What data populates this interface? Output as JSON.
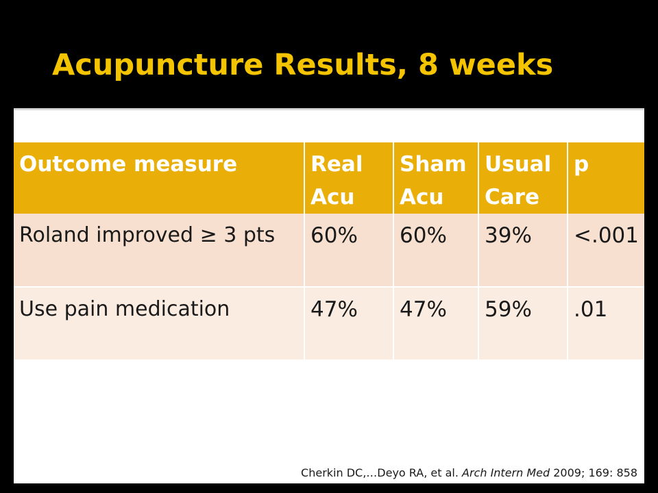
{
  "slide": {
    "title": "Acupuncture Results, 8 weeks",
    "title_color": "#f5c400",
    "background_color": "#000000"
  },
  "table": {
    "header_color": "#e9ae07",
    "row_colors": [
      "#f7e0cf",
      "#fbece2"
    ],
    "headers": [
      "Outcome measure",
      "Real Acu",
      "Sham Acu",
      "Usual Care",
      "p"
    ],
    "rows": [
      [
        "Roland improved ≥ 3 pts",
        "60%",
        "60%",
        "39%",
        "<.001"
      ],
      [
        "Use pain medication",
        "47%",
        "47%",
        "59%",
        ".01"
      ]
    ]
  },
  "citation": {
    "authors": "Cherkin DC,…Deyo RA,  et al. ",
    "journal": "Arch Intern Med",
    "details": " 2009; 169: 858"
  }
}
